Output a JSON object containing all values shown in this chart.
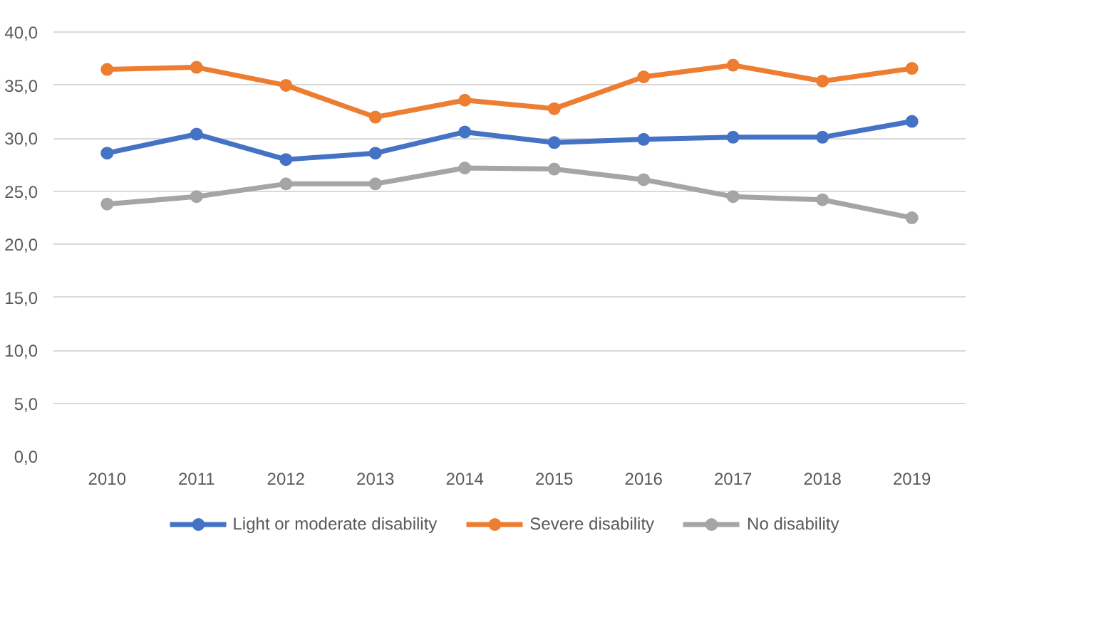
{
  "chart_data": {
    "type": "line",
    "categories": [
      "2010",
      "2011",
      "2012",
      "2013",
      "2014",
      "2015",
      "2016",
      "2017",
      "2018",
      "2019"
    ],
    "series": [
      {
        "name": "Light or moderate disability",
        "color": "#4472c4",
        "values": [
          28.6,
          30.4,
          28.0,
          28.6,
          30.6,
          29.6,
          29.9,
          30.1,
          30.1,
          31.6
        ]
      },
      {
        "name": "Severe disability",
        "color": "#ed7d31",
        "values": [
          36.5,
          36.7,
          35.0,
          32.0,
          33.6,
          32.8,
          35.8,
          36.9,
          35.4,
          36.6
        ]
      },
      {
        "name": "No disability",
        "color": "#a5a5a5",
        "values": [
          23.8,
          24.5,
          25.7,
          25.7,
          27.2,
          27.1,
          26.1,
          24.5,
          24.2,
          22.5
        ]
      }
    ],
    "ylim": [
      0,
      40
    ],
    "yticks": [
      {
        "value": 0,
        "label": "0,0"
      },
      {
        "value": 5,
        "label": "5,0"
      },
      {
        "value": 10,
        "label": "10,0"
      },
      {
        "value": 15,
        "label": "15,0"
      },
      {
        "value": 20,
        "label": "20,0"
      },
      {
        "value": 25,
        "label": "25,0"
      },
      {
        "value": 30,
        "label": "30,0"
      },
      {
        "value": 35,
        "label": "35,0"
      },
      {
        "value": 40,
        "label": "40,0"
      }
    ],
    "grid": "y",
    "legend": "bottom",
    "marker": "circle",
    "line_style": "solid"
  }
}
